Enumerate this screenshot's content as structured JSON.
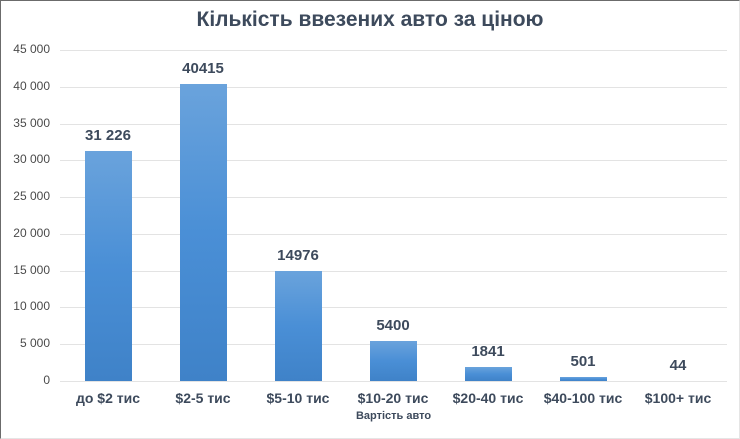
{
  "chart_data": {
    "type": "bar",
    "title": "Кількість ввезених авто за ціною",
    "xlabel": "Вартість авто",
    "ylabel": "",
    "categories": [
      "до $2 тис",
      "$2-5 тис",
      "$5-10 тис",
      "$10-20 тис",
      "$20-40 тис",
      "$40-100 тис",
      "$100+ тис"
    ],
    "values": [
      31226,
      40415,
      14976,
      5400,
      1841,
      501,
      44
    ],
    "value_labels": [
      "31 226",
      "40415",
      "14976",
      "5400",
      "1841",
      "501",
      "44"
    ],
    "ylim": [
      0,
      45000
    ],
    "yticks": [
      "45 000",
      "40 000",
      "35 000",
      "30 000",
      "25 000",
      "20 000",
      "15 000",
      "10 000",
      "5 000",
      "0"
    ],
    "grid": true,
    "legend": null,
    "bar_color": "#4a8fd6"
  }
}
